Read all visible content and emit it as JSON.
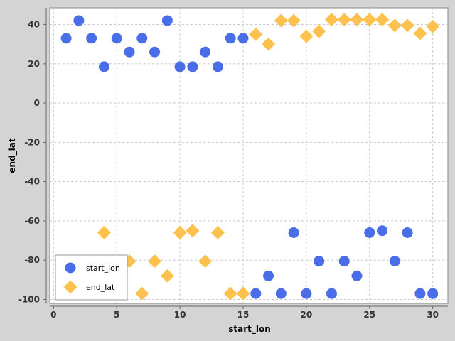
{
  "chart_data": {
    "type": "scatter",
    "title": "",
    "xlabel": "start_lon",
    "ylabel": "end_lat",
    "xlim": [
      -0.3,
      31.2
    ],
    "ylim": [
      -102,
      48.5
    ],
    "x_ticks": [
      0,
      5,
      10,
      15,
      20,
      25,
      30
    ],
    "y_ticks": [
      40,
      20,
      0,
      -20,
      -40,
      -60,
      -80,
      -100
    ],
    "grid": true,
    "legend_position": "bottom-left",
    "series": [
      {
        "name": "start_lon",
        "marker": "circle",
        "color": "#4a6ee8",
        "x": [
          1,
          2,
          3,
          4,
          5,
          6,
          7,
          8,
          9,
          10,
          11,
          12,
          13,
          14,
          15,
          16,
          17,
          18,
          19,
          20,
          21,
          22,
          23,
          24,
          25,
          26,
          27,
          28,
          29,
          30
        ],
        "y": [
          33,
          42,
          33,
          18.5,
          33,
          26,
          33,
          26,
          42,
          18.5,
          18.5,
          26,
          18.5,
          33,
          33,
          -97,
          -88,
          -97,
          -66,
          -97,
          -80.5,
          -97,
          -80.5,
          -88,
          -66,
          -65,
          -80.5,
          -66,
          -97,
          -97
        ]
      },
      {
        "name": "end_lat",
        "marker": "diamond",
        "color": "#ffc14d",
        "x": [
          4,
          6,
          7,
          8,
          9,
          10,
          11,
          12,
          13,
          14,
          15,
          16,
          17,
          18,
          19,
          20,
          21,
          22,
          23,
          24,
          25,
          26,
          27,
          28,
          29,
          30
        ],
        "y": [
          -66,
          -80.5,
          -97,
          -80.5,
          -88,
          -66,
          -65,
          -80.5,
          -66,
          -97,
          -97,
          35,
          30,
          42,
          42,
          34,
          36.5,
          42.5,
          42.5,
          42.5,
          42.5,
          42.5,
          39.5,
          39.5,
          35.5,
          39
        ]
      }
    ]
  }
}
